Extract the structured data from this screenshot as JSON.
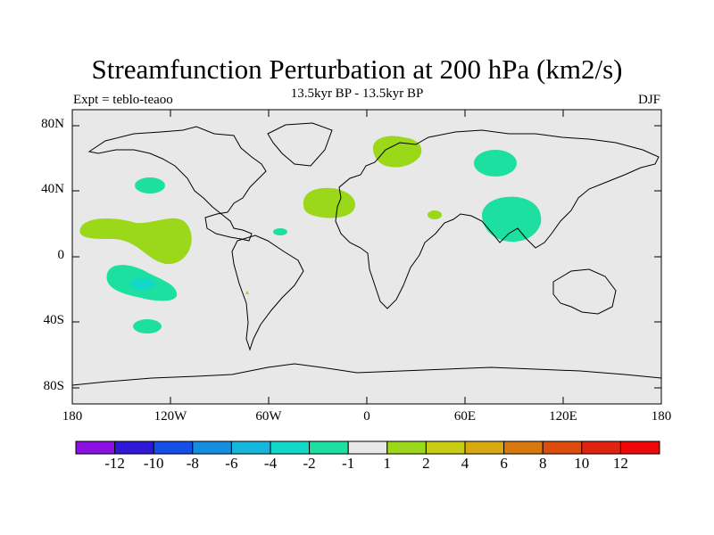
{
  "chart_data": {
    "type": "map",
    "title": "Streamfunction Perturbation at 200 hPa (km2/s)",
    "subtitle": "13.5kyr BP - 13.5kyr BP",
    "left_label": "Expt = teblo-teaoo",
    "right_label": "DJF",
    "projection": "cylindrical equidistant",
    "lon_range": [
      -180,
      180
    ],
    "lat_range": [
      -90,
      90
    ],
    "lat_ticks": [
      "80N",
      "40N",
      "0",
      "40S",
      "80S"
    ],
    "lon_ticks": [
      "180",
      "120W",
      "60W",
      "0",
      "60E",
      "120E",
      "180"
    ],
    "colorbar": {
      "labels": [
        "-12",
        "-10",
        "-8",
        "-6",
        "-4",
        "-2",
        "-1",
        "1",
        "2",
        "4",
        "6",
        "8",
        "10",
        "12"
      ],
      "colors": [
        "#8a11e0",
        "#2f18d8",
        "#1450e6",
        "#138ee0",
        "#14b6dc",
        "#12d8c8",
        "#1de0a0",
        "#e8e8e8",
        "#9bd81a",
        "#c8cc12",
        "#d8a810",
        "#d8780e",
        "#dc4c0c",
        "#e02210",
        "#ee0808"
      ]
    },
    "anomalies": [
      {
        "name": "north-pacific-negative",
        "lon": -140,
        "lat": 43,
        "value_range": "-2 to -1"
      },
      {
        "name": "east-pacific-positive",
        "lon": -145,
        "lat": 10,
        "value_range": "1 to 2"
      },
      {
        "name": "south-pacific-negative",
        "lon": -133,
        "lat": -17,
        "value_range": "-4 to -1"
      },
      {
        "name": "south-pacific-small-negative",
        "lon": -135,
        "lat": -44,
        "value_range": "-2 to -1"
      },
      {
        "name": "caribbean-negative",
        "lon": -52,
        "lat": 14,
        "value_range": "-2 to -1"
      },
      {
        "name": "north-atlantic-positive",
        "lon": -22,
        "lat": 33,
        "value_range": "1 to 2"
      },
      {
        "name": "scandinavia-positive",
        "lon": 18,
        "lat": 62,
        "value_range": "1 to 2"
      },
      {
        "name": "siberia-negative",
        "lon": 63,
        "lat": 57,
        "value_range": "-2 to -1"
      },
      {
        "name": "arabia-positive",
        "lon": 42,
        "lat": 25,
        "value_range": "1 to 2"
      },
      {
        "name": "south-asia-negative",
        "lon": 90,
        "lat": 22,
        "value_range": "-2 to -1"
      }
    ]
  }
}
